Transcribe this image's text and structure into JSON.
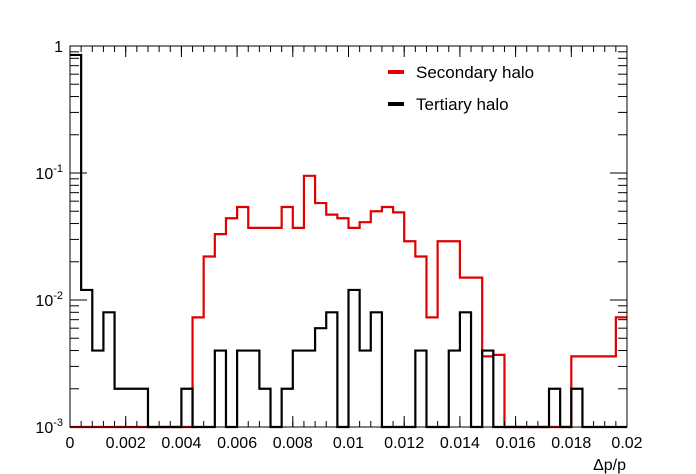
{
  "chart_data": {
    "type": "histogram",
    "xlabel": "Δp/p",
    "ylabel": "",
    "xlim": [
      0,
      0.02
    ],
    "ylim": [
      0.001,
      1
    ],
    "yscale": "log",
    "grid": false,
    "legend_position": "top-right",
    "bin_width": 0.0004,
    "x_ticks": [
      {
        "value": 0,
        "label": "0"
      },
      {
        "value": 0.002,
        "label": "0.002"
      },
      {
        "value": 0.004,
        "label": "0.004"
      },
      {
        "value": 0.006,
        "label": "0.006"
      },
      {
        "value": 0.008,
        "label": "0.008"
      },
      {
        "value": 0.01,
        "label": "0.01"
      },
      {
        "value": 0.012,
        "label": "0.012"
      },
      {
        "value": 0.014,
        "label": "0.014"
      },
      {
        "value": 0.016,
        "label": "0.016"
      },
      {
        "value": 0.018,
        "label": "0.018"
      },
      {
        "value": 0.02,
        "label": "0.02"
      }
    ],
    "y_ticks": [
      {
        "value": 0.001,
        "base": "10",
        "exp": "-3"
      },
      {
        "value": 0.01,
        "base": "10",
        "exp": "-2"
      },
      {
        "value": 0.1,
        "base": "10",
        "exp": "-1"
      },
      {
        "value": 1,
        "base": "1",
        "exp": ""
      }
    ],
    "series": [
      {
        "name": "Secondary halo",
        "color": "#e00000",
        "bins": [
          {
            "x0": 0.0,
            "x1": 0.0044,
            "y": 0.001
          },
          {
            "x0": 0.0044,
            "x1": 0.0048,
            "y": 0.0073
          },
          {
            "x0": 0.0048,
            "x1": 0.0052,
            "y": 0.022
          },
          {
            "x0": 0.0052,
            "x1": 0.0056,
            "y": 0.033
          },
          {
            "x0": 0.0056,
            "x1": 0.006,
            "y": 0.044
          },
          {
            "x0": 0.006,
            "x1": 0.0064,
            "y": 0.054
          },
          {
            "x0": 0.0064,
            "x1": 0.0076,
            "y": 0.037
          },
          {
            "x0": 0.0076,
            "x1": 0.008,
            "y": 0.054
          },
          {
            "x0": 0.008,
            "x1": 0.0084,
            "y": 0.037
          },
          {
            "x0": 0.0084,
            "x1": 0.0088,
            "y": 0.095
          },
          {
            "x0": 0.0088,
            "x1": 0.0092,
            "y": 0.058
          },
          {
            "x0": 0.0092,
            "x1": 0.0096,
            "y": 0.047
          },
          {
            "x0": 0.0096,
            "x1": 0.01,
            "y": 0.044
          },
          {
            "x0": 0.01,
            "x1": 0.0104,
            "y": 0.037
          },
          {
            "x0": 0.0104,
            "x1": 0.0108,
            "y": 0.041
          },
          {
            "x0": 0.0108,
            "x1": 0.0112,
            "y": 0.05
          },
          {
            "x0": 0.0112,
            "x1": 0.0116,
            "y": 0.054
          },
          {
            "x0": 0.0116,
            "x1": 0.012,
            "y": 0.049
          },
          {
            "x0": 0.012,
            "x1": 0.0124,
            "y": 0.029
          },
          {
            "x0": 0.0124,
            "x1": 0.0128,
            "y": 0.022
          },
          {
            "x0": 0.0128,
            "x1": 0.0132,
            "y": 0.0073
          },
          {
            "x0": 0.0132,
            "x1": 0.014,
            "y": 0.029
          },
          {
            "x0": 0.014,
            "x1": 0.0148,
            "y": 0.015
          },
          {
            "x0": 0.0148,
            "x1": 0.0152,
            "y": 0.0036
          },
          {
            "x0": 0.0152,
            "x1": 0.0156,
            "y": 0.0037
          },
          {
            "x0": 0.0156,
            "x1": 0.018,
            "y": 0.001
          },
          {
            "x0": 0.018,
            "x1": 0.0196,
            "y": 0.0036
          },
          {
            "x0": 0.0196,
            "x1": 0.02,
            "y": 0.0073
          }
        ]
      },
      {
        "name": "Tertiary halo",
        "color": "#000000",
        "bins": [
          {
            "x0": 0.0,
            "x1": 0.0004,
            "y": 0.85
          },
          {
            "x0": 0.0004,
            "x1": 0.0008,
            "y": 0.012
          },
          {
            "x0": 0.0008,
            "x1": 0.0012,
            "y": 0.004
          },
          {
            "x0": 0.0012,
            "x1": 0.0016,
            "y": 0.008
          },
          {
            "x0": 0.0016,
            "x1": 0.0028,
            "y": 0.002
          },
          {
            "x0": 0.0028,
            "x1": 0.004,
            "y": 0.001
          },
          {
            "x0": 0.004,
            "x1": 0.0044,
            "y": 0.002
          },
          {
            "x0": 0.0044,
            "x1": 0.0052,
            "y": 0.001
          },
          {
            "x0": 0.0052,
            "x1": 0.0056,
            "y": 0.004
          },
          {
            "x0": 0.0056,
            "x1": 0.006,
            "y": 0.001
          },
          {
            "x0": 0.006,
            "x1": 0.0068,
            "y": 0.004
          },
          {
            "x0": 0.0068,
            "x1": 0.0072,
            "y": 0.002
          },
          {
            "x0": 0.0072,
            "x1": 0.0076,
            "y": 0.001
          },
          {
            "x0": 0.0076,
            "x1": 0.008,
            "y": 0.002
          },
          {
            "x0": 0.008,
            "x1": 0.0088,
            "y": 0.004
          },
          {
            "x0": 0.0088,
            "x1": 0.0092,
            "y": 0.006
          },
          {
            "x0": 0.0092,
            "x1": 0.0096,
            "y": 0.008
          },
          {
            "x0": 0.0096,
            "x1": 0.01,
            "y": 0.001
          },
          {
            "x0": 0.01,
            "x1": 0.0104,
            "y": 0.012
          },
          {
            "x0": 0.0104,
            "x1": 0.0108,
            "y": 0.004
          },
          {
            "x0": 0.0108,
            "x1": 0.0112,
            "y": 0.008
          },
          {
            "x0": 0.0112,
            "x1": 0.0124,
            "y": 0.001
          },
          {
            "x0": 0.0124,
            "x1": 0.0128,
            "y": 0.004
          },
          {
            "x0": 0.0128,
            "x1": 0.0136,
            "y": 0.001
          },
          {
            "x0": 0.0136,
            "x1": 0.014,
            "y": 0.004
          },
          {
            "x0": 0.014,
            "x1": 0.0144,
            "y": 0.008
          },
          {
            "x0": 0.0144,
            "x1": 0.0148,
            "y": 0.001
          },
          {
            "x0": 0.0148,
            "x1": 0.0152,
            "y": 0.004
          },
          {
            "x0": 0.0152,
            "x1": 0.0172,
            "y": 0.001
          },
          {
            "x0": 0.0172,
            "x1": 0.0176,
            "y": 0.002
          },
          {
            "x0": 0.0176,
            "x1": 0.018,
            "y": 0.001
          },
          {
            "x0": 0.018,
            "x1": 0.0184,
            "y": 0.002
          },
          {
            "x0": 0.0184,
            "x1": 0.02,
            "y": 0.001
          }
        ]
      }
    ]
  }
}
